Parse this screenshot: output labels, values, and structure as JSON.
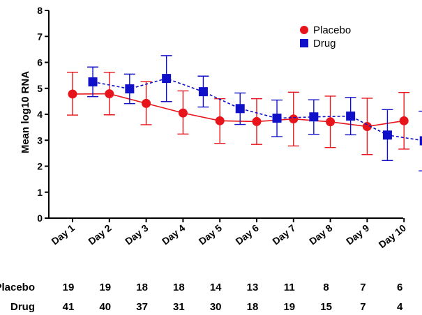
{
  "chart_data": {
    "type": "line",
    "title": "",
    "xlabel": "",
    "ylabel": "Mean log10 RNA",
    "categories": [
      "Day 1",
      "Day 2",
      "Day 3",
      "Day 4",
      "Day 5",
      "Day 6",
      "Day 7",
      "Day 8",
      "Day 9",
      "Day 10"
    ],
    "ylim": [
      0,
      8
    ],
    "yticks": [
      0,
      1,
      2,
      3,
      4,
      5,
      6,
      7,
      8
    ],
    "grid": false,
    "legend_position": "top-right",
    "series": [
      {
        "name": "Placebo",
        "color": "#e8141b",
        "marker": "circle",
        "line_style": "solid",
        "values": [
          4.78,
          4.79,
          4.42,
          4.05,
          3.75,
          3.72,
          3.82,
          3.71,
          3.53,
          3.75
        ],
        "error_low": [
          3.97,
          3.98,
          3.6,
          3.24,
          2.88,
          2.84,
          2.78,
          2.72,
          2.45,
          2.66
        ],
        "error_high": [
          5.62,
          5.62,
          5.26,
          4.9,
          4.6,
          4.6,
          4.85,
          4.7,
          4.62,
          4.84
        ]
      },
      {
        "name": "Drug",
        "color": "#1010c8",
        "marker": "square",
        "line_style": "dashed",
        "values": [
          5.25,
          4.98,
          5.38,
          4.87,
          4.22,
          3.85,
          3.9,
          3.93,
          3.2,
          2.98
        ],
        "error_low": [
          4.68,
          4.41,
          4.49,
          4.28,
          3.61,
          3.14,
          3.23,
          3.21,
          2.22,
          1.82
        ],
        "error_high": [
          5.82,
          5.55,
          6.26,
          5.47,
          4.82,
          4.55,
          4.56,
          4.65,
          4.18,
          4.12
        ]
      }
    ]
  },
  "counts_table": {
    "rows": [
      {
        "label": "Placebo",
        "values": [
          "19",
          "19",
          "18",
          "18",
          "14",
          "13",
          "11",
          "8",
          "7",
          "6"
        ]
      },
      {
        "label": "Drug",
        "values": [
          "41",
          "40",
          "37",
          "31",
          "30",
          "18",
          "19",
          "15",
          "7",
          "4"
        ]
      }
    ]
  }
}
